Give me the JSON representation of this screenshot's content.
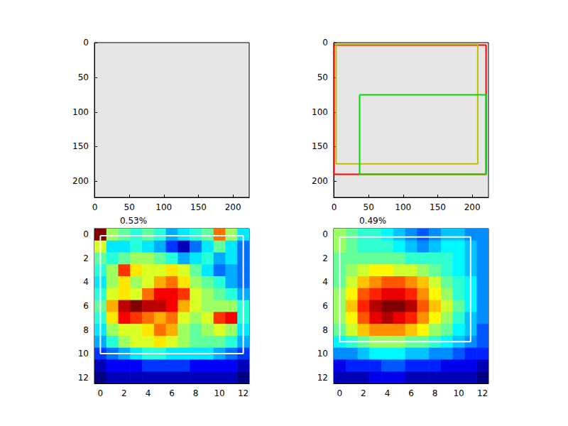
{
  "chart_data": [
    {
      "type": "image",
      "xlim": [
        -0.5,
        223.5
      ],
      "ylim": [
        223.5,
        -0.5
      ],
      "xticks": [
        0,
        50,
        100,
        150,
        200
      ],
      "yticks": [
        0,
        50,
        100,
        150,
        200
      ]
    },
    {
      "type": "image",
      "xlim": [
        -0.5,
        223.5
      ],
      "ylim": [
        223.5,
        -0.5
      ],
      "xticks": [
        0,
        50,
        100,
        150,
        200
      ],
      "yticks": [
        0,
        50,
        100,
        150,
        200
      ],
      "boxes": [
        {
          "color": "red",
          "x": [
            0,
            220
          ],
          "y": [
            3,
            190
          ]
        },
        {
          "color": "#bfbf00",
          "x": [
            3,
            208
          ],
          "y": [
            2,
            175
          ]
        },
        {
          "color": "#00dd00",
          "x": [
            37,
            220
          ],
          "y": [
            75,
            190
          ]
        }
      ]
    },
    {
      "type": "heatmap",
      "title": "0.53%",
      "xlim": [
        -0.5,
        12.5
      ],
      "ylim": [
        12.5,
        -0.5
      ],
      "xticks": [
        0,
        2,
        4,
        6,
        8,
        10,
        12
      ],
      "yticks": [
        0,
        2,
        4,
        6,
        8,
        10,
        12
      ],
      "cells": [
        [
          0.95,
          0.55,
          0.5,
          0.45,
          0.5,
          0.45,
          0.35,
          0.4,
          0.45,
          0.5,
          0.75,
          0.55,
          0.4
        ],
        [
          0.6,
          0.4,
          0.4,
          0.45,
          0.4,
          0.35,
          0.25,
          0.15,
          0.3,
          0.4,
          0.5,
          0.4,
          0.3
        ],
        [
          0.5,
          0.45,
          0.5,
          0.55,
          0.55,
          0.5,
          0.45,
          0.35,
          0.4,
          0.45,
          0.35,
          0.4,
          0.3
        ],
        [
          0.45,
          0.55,
          0.8,
          0.65,
          0.6,
          0.6,
          0.65,
          0.6,
          0.5,
          0.4,
          0.3,
          0.35,
          0.3
        ],
        [
          0.4,
          0.55,
          0.65,
          0.55,
          0.6,
          0.7,
          0.75,
          0.65,
          0.55,
          0.5,
          0.45,
          0.35,
          0.3
        ],
        [
          0.45,
          0.6,
          0.65,
          0.6,
          0.75,
          0.85,
          0.85,
          0.8,
          0.6,
          0.55,
          0.5,
          0.45,
          0.35
        ],
        [
          0.5,
          0.7,
          0.9,
          0.95,
          0.9,
          0.9,
          0.85,
          0.7,
          0.6,
          0.55,
          0.55,
          0.55,
          0.45
        ],
        [
          0.45,
          0.65,
          0.85,
          0.8,
          0.75,
          0.7,
          0.75,
          0.6,
          0.55,
          0.6,
          0.8,
          0.85,
          0.45
        ],
        [
          0.4,
          0.55,
          0.6,
          0.6,
          0.65,
          0.75,
          0.7,
          0.55,
          0.5,
          0.55,
          0.6,
          0.55,
          0.4
        ],
        [
          0.35,
          0.45,
          0.55,
          0.6,
          0.6,
          0.65,
          0.6,
          0.55,
          0.5,
          0.5,
          0.5,
          0.45,
          0.35
        ],
        [
          0.25,
          0.3,
          0.35,
          0.4,
          0.45,
          0.45,
          0.4,
          0.4,
          0.4,
          0.4,
          0.35,
          0.3,
          0.25
        ],
        [
          0.15,
          0.2,
          0.2,
          0.2,
          0.25,
          0.25,
          0.25,
          0.25,
          0.2,
          0.2,
          0.2,
          0.2,
          0.15
        ],
        [
          0.1,
          0.15,
          0.15,
          0.15,
          0.15,
          0.15,
          0.15,
          0.15,
          0.15,
          0.15,
          0.15,
          0.15,
          0.1
        ]
      ],
      "boxes": [
        {
          "color": "white",
          "x": [
            0,
            12
          ],
          "y": [
            0.1,
            10
          ]
        }
      ]
    },
    {
      "type": "heatmap",
      "title": "0.49%",
      "xlim": [
        -0.5,
        12.5
      ],
      "ylim": [
        12.5,
        -0.5
      ],
      "xticks": [
        0,
        2,
        4,
        6,
        8,
        10,
        12
      ],
      "yticks": [
        0,
        2,
        4,
        6,
        8,
        10,
        12
      ],
      "cells": [
        [
          0.55,
          0.5,
          0.45,
          0.45,
          0.4,
          0.35,
          0.3,
          0.25,
          0.3,
          0.35,
          0.35,
          0.3,
          0.3
        ],
        [
          0.55,
          0.5,
          0.45,
          0.45,
          0.45,
          0.4,
          0.35,
          0.3,
          0.35,
          0.4,
          0.4,
          0.35,
          0.3
        ],
        [
          0.5,
          0.5,
          0.5,
          0.5,
          0.5,
          0.5,
          0.45,
          0.45,
          0.45,
          0.45,
          0.4,
          0.35,
          0.3
        ],
        [
          0.5,
          0.55,
          0.6,
          0.65,
          0.65,
          0.6,
          0.6,
          0.55,
          0.5,
          0.45,
          0.4,
          0.35,
          0.3
        ],
        [
          0.5,
          0.6,
          0.7,
          0.75,
          0.8,
          0.8,
          0.75,
          0.7,
          0.6,
          0.5,
          0.45,
          0.4,
          0.3
        ],
        [
          0.55,
          0.65,
          0.8,
          0.85,
          0.9,
          0.9,
          0.85,
          0.75,
          0.65,
          0.55,
          0.45,
          0.4,
          0.3
        ],
        [
          0.55,
          0.7,
          0.85,
          0.95,
          1.0,
          1.0,
          0.95,
          0.8,
          0.7,
          0.6,
          0.5,
          0.4,
          0.3
        ],
        [
          0.55,
          0.65,
          0.8,
          0.9,
          0.95,
          0.9,
          0.85,
          0.75,
          0.65,
          0.55,
          0.45,
          0.35,
          0.3
        ],
        [
          0.5,
          0.6,
          0.7,
          0.75,
          0.75,
          0.75,
          0.7,
          0.65,
          0.55,
          0.5,
          0.4,
          0.35,
          0.25
        ],
        [
          0.4,
          0.45,
          0.5,
          0.55,
          0.55,
          0.55,
          0.5,
          0.5,
          0.45,
          0.4,
          0.35,
          0.3,
          0.25
        ],
        [
          0.3,
          0.3,
          0.35,
          0.4,
          0.4,
          0.4,
          0.35,
          0.35,
          0.3,
          0.3,
          0.25,
          0.2,
          0.2
        ],
        [
          0.15,
          0.2,
          0.2,
          0.2,
          0.25,
          0.25,
          0.2,
          0.2,
          0.2,
          0.15,
          0.15,
          0.15,
          0.1
        ],
        [
          0.1,
          0.1,
          0.1,
          0.15,
          0.15,
          0.15,
          0.1,
          0.1,
          0.1,
          0.1,
          0.1,
          0.1,
          0.05
        ]
      ],
      "boxes": [
        {
          "color": "white",
          "x": [
            0,
            11
          ],
          "y": [
            0.2,
            9
          ]
        }
      ]
    }
  ]
}
